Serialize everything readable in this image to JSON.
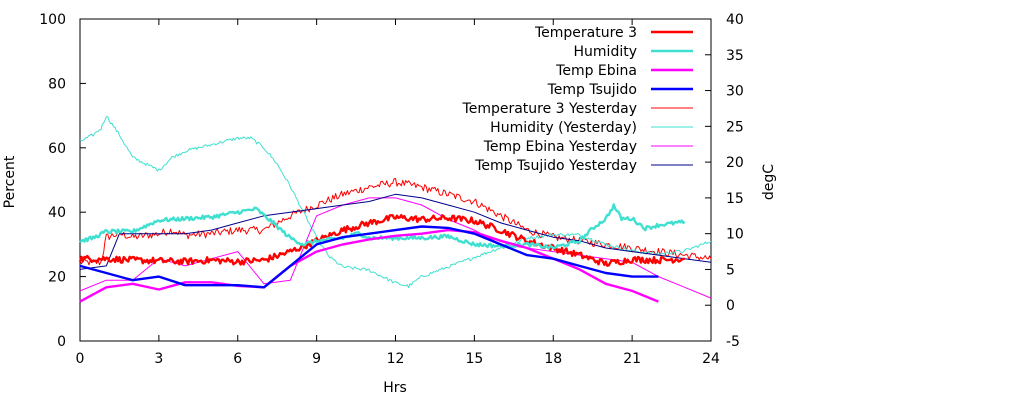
{
  "chart_data": {
    "type": "line",
    "title": "",
    "xlabel": "Hrs",
    "ylabel": "Percent",
    "y2label": "degC",
    "xlim": [
      0,
      24
    ],
    "ylim": [
      0,
      100
    ],
    "y2lim": [
      -5,
      40
    ],
    "xticks": [
      0,
      3,
      6,
      9,
      12,
      15,
      18,
      21,
      24
    ],
    "yticks": [
      0,
      20,
      40,
      60,
      80,
      100
    ],
    "y2ticks": [
      -5,
      0,
      5,
      10,
      15,
      20,
      25,
      30,
      35,
      40
    ],
    "grid": false,
    "legend_position": "top-right",
    "series": [
      {
        "name": "Temperature 3",
        "axis": "y2",
        "color": "#ff0000",
        "width": 2.4,
        "noise": 0.45,
        "points": [
          [
            0,
            6.5
          ],
          [
            1,
            6.5
          ],
          [
            2,
            6.3
          ],
          [
            3,
            6.2
          ],
          [
            4,
            6.1
          ],
          [
            5,
            6.3
          ],
          [
            6,
            6.1
          ],
          [
            7,
            6.3
          ],
          [
            8,
            7.5
          ],
          [
            9,
            9
          ],
          [
            10,
            10.5
          ],
          [
            11,
            11.5
          ],
          [
            12,
            12.3
          ],
          [
            13,
            12
          ],
          [
            14,
            12.2
          ],
          [
            15,
            11.8
          ],
          [
            16,
            10.5
          ],
          [
            17,
            9
          ],
          [
            18,
            8
          ],
          [
            19,
            7
          ],
          [
            20,
            5.8
          ],
          [
            21,
            6.4
          ],
          [
            22,
            6.3
          ],
          [
            23,
            6.5
          ]
        ]
      },
      {
        "name": "Humidity",
        "axis": "y",
        "color": "#40e0d0",
        "width": 2.4,
        "noise": 0.6,
        "points": [
          [
            0,
            31
          ],
          [
            0.5,
            32
          ],
          [
            1,
            34
          ],
          [
            2,
            34
          ],
          [
            3,
            37.5
          ],
          [
            4,
            38
          ],
          [
            5,
            38.5
          ],
          [
            6,
            40
          ],
          [
            6.7,
            41
          ],
          [
            7.3,
            37
          ],
          [
            8,
            32
          ],
          [
            8.5,
            30
          ],
          [
            9,
            31
          ],
          [
            10,
            32
          ],
          [
            10.6,
            33.5
          ],
          [
            11,
            32
          ],
          [
            12,
            32
          ],
          [
            13,
            32
          ],
          [
            14,
            32.5
          ],
          [
            15,
            30
          ],
          [
            16,
            29.5
          ],
          [
            17,
            30
          ],
          [
            18,
            29
          ],
          [
            19,
            31
          ],
          [
            19.5,
            35
          ],
          [
            20,
            38
          ],
          [
            20.3,
            42
          ],
          [
            20.6,
            38
          ],
          [
            21,
            38
          ],
          [
            21.5,
            35
          ],
          [
            22,
            36
          ],
          [
            23,
            37
          ]
        ]
      },
      {
        "name": "Temp Ebina",
        "axis": "y2",
        "color": "#ff00ff",
        "width": 2.4,
        "noise": 0,
        "points": [
          [
            0,
            0.5
          ],
          [
            1,
            2.5
          ],
          [
            2,
            3
          ],
          [
            3,
            2.2
          ],
          [
            4,
            3.2
          ],
          [
            5,
            3.2
          ],
          [
            6,
            2.7
          ],
          [
            7,
            2.5
          ],
          [
            8,
            5.5
          ],
          [
            9,
            7.5
          ],
          [
            10,
            8.5
          ],
          [
            11,
            9.2
          ],
          [
            12,
            9.7
          ],
          [
            13,
            10
          ],
          [
            14,
            10.5
          ],
          [
            15,
            10.2
          ],
          [
            16,
            9
          ],
          [
            17,
            8
          ],
          [
            18,
            6.5
          ],
          [
            19,
            5
          ],
          [
            20,
            3
          ],
          [
            21,
            2
          ],
          [
            22,
            0.5
          ]
        ]
      },
      {
        "name": "Temp Tsujido",
        "axis": "y2",
        "color": "#0000ff",
        "width": 2.4,
        "noise": 0,
        "points": [
          [
            0,
            5.5
          ],
          [
            1,
            4.5
          ],
          [
            2,
            3.5
          ],
          [
            3,
            4
          ],
          [
            4,
            2.8
          ],
          [
            5,
            2.8
          ],
          [
            6,
            2.8
          ],
          [
            7,
            2.5
          ],
          [
            8,
            5.5
          ],
          [
            9,
            8.5
          ],
          [
            10,
            9.5
          ],
          [
            11,
            10
          ],
          [
            12,
            10.5
          ],
          [
            13,
            11
          ],
          [
            14,
            10.8
          ],
          [
            15,
            10
          ],
          [
            16,
            8.5
          ],
          [
            17,
            7
          ],
          [
            18,
            6.5
          ],
          [
            19,
            5.5
          ],
          [
            20,
            4.5
          ],
          [
            21,
            4
          ],
          [
            22,
            4
          ]
        ]
      },
      {
        "name": "Temperature 3 Yesterday",
        "axis": "y2",
        "color": "#ff0000",
        "width": 1,
        "noise": 0.55,
        "points": [
          [
            0,
            6
          ],
          [
            0.8,
            6
          ],
          [
            1,
            9.5
          ],
          [
            1.5,
            10
          ],
          [
            2,
            9.5
          ],
          [
            3,
            10
          ],
          [
            3.5,
            10.5
          ],
          [
            4,
            9.8
          ],
          [
            5,
            10
          ],
          [
            6,
            10.5
          ],
          [
            7,
            10.5
          ],
          [
            8,
            12.5
          ],
          [
            9,
            14
          ],
          [
            10,
            15.5
          ],
          [
            11,
            16.5
          ],
          [
            12,
            17.2
          ],
          [
            13,
            16.5
          ],
          [
            14,
            15.5
          ],
          [
            15,
            14.5
          ],
          [
            16,
            12.5
          ],
          [
            17,
            10.5
          ],
          [
            18,
            9.5
          ],
          [
            19,
            9
          ],
          [
            20,
            8.5
          ],
          [
            21,
            8
          ],
          [
            22,
            7.5
          ],
          [
            23,
            7
          ],
          [
            24,
            6.5
          ]
        ]
      },
      {
        "name": "Humidity (Yesterday)",
        "axis": "y",
        "color": "#40e0d0",
        "width": 1,
        "noise": 0.5,
        "points": [
          [
            0,
            62
          ],
          [
            0.5,
            64
          ],
          [
            0.8,
            66
          ],
          [
            1,
            70
          ],
          [
            1.5,
            64
          ],
          [
            2,
            57
          ],
          [
            2.5,
            55
          ],
          [
            3,
            53
          ],
          [
            3.5,
            57
          ],
          [
            4,
            59
          ],
          [
            5,
            61
          ],
          [
            6,
            63
          ],
          [
            6.5,
            63
          ],
          [
            7,
            60
          ],
          [
            7.5,
            55
          ],
          [
            8,
            48
          ],
          [
            8.5,
            40
          ],
          [
            9,
            32
          ],
          [
            9.5,
            26
          ],
          [
            10,
            23
          ],
          [
            11,
            22
          ],
          [
            11.5,
            20
          ],
          [
            12,
            18
          ],
          [
            12.5,
            17
          ],
          [
            13,
            20
          ],
          [
            14,
            23
          ],
          [
            15,
            26
          ],
          [
            16,
            29
          ],
          [
            17,
            32
          ],
          [
            18,
            33
          ],
          [
            19,
            33
          ],
          [
            20,
            30
          ],
          [
            21,
            28
          ],
          [
            22,
            27
          ],
          [
            23,
            28
          ],
          [
            24,
            31
          ]
        ]
      },
      {
        "name": "Temp Ebina Yesterday",
        "axis": "y2",
        "color": "#ff00ff",
        "width": 1,
        "noise": 0,
        "points": [
          [
            0,
            2
          ],
          [
            1,
            3.5
          ],
          [
            2,
            3.5
          ],
          [
            3,
            6.5
          ],
          [
            4,
            5.5
          ],
          [
            5,
            6.5
          ],
          [
            6,
            7.5
          ],
          [
            7,
            3
          ],
          [
            8,
            3.5
          ],
          [
            9,
            12.5
          ],
          [
            10,
            14
          ],
          [
            11,
            15
          ],
          [
            12,
            15
          ],
          [
            13,
            14
          ],
          [
            14,
            12
          ],
          [
            15,
            10.5
          ],
          [
            16,
            8.5
          ],
          [
            17,
            8
          ],
          [
            18,
            7.5
          ],
          [
            19,
            7
          ],
          [
            20,
            6.5
          ],
          [
            21,
            6
          ],
          [
            22,
            4
          ],
          [
            23,
            2.5
          ],
          [
            24,
            1
          ]
        ]
      },
      {
        "name": "Temp Tsujido Yesterday",
        "axis": "y2",
        "color": "#00008b",
        "width": 1,
        "noise": 0,
        "points": [
          [
            0,
            5
          ],
          [
            1,
            5.5
          ],
          [
            1.5,
            10
          ],
          [
            3,
            10
          ],
          [
            4,
            10
          ],
          [
            5,
            10.5
          ],
          [
            6,
            11.5
          ],
          [
            7,
            12.5
          ],
          [
            8,
            13
          ],
          [
            9,
            13.5
          ],
          [
            10,
            14
          ],
          [
            11,
            14.5
          ],
          [
            12,
            15.5
          ],
          [
            13,
            15
          ],
          [
            14,
            14
          ],
          [
            15,
            13
          ],
          [
            16,
            11.5
          ],
          [
            17,
            10.5
          ],
          [
            18,
            9.5
          ],
          [
            19,
            9
          ],
          [
            20,
            8
          ],
          [
            21,
            7.5
          ],
          [
            22,
            7
          ],
          [
            23,
            6.5
          ],
          [
            24,
            6
          ]
        ]
      }
    ]
  }
}
